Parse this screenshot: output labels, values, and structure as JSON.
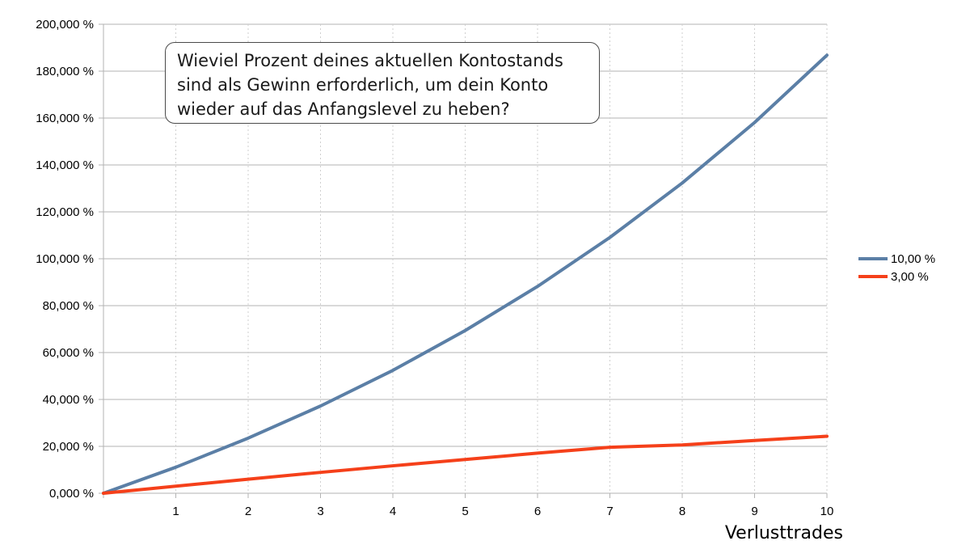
{
  "chart_data": {
    "type": "line",
    "x": [
      0,
      1,
      2,
      3,
      4,
      5,
      6,
      7,
      8,
      9,
      10
    ],
    "x_tick_labels": [
      "1",
      "2",
      "3",
      "4",
      "5",
      "6",
      "7",
      "8",
      "9",
      "10"
    ],
    "xlabel": "Verlusttrades",
    "ylabel": "",
    "ylim": [
      0,
      200000
    ],
    "y_tick_labels": [
      "0,000 %",
      "20,000 %",
      "40,000 %",
      "60,000 %",
      "80,000 %",
      "100,000 %",
      "120,000 %",
      "140,000 %",
      "160,000 %",
      "180,000 %",
      "200,000 %"
    ],
    "series": [
      {
        "name": "10,00 %",
        "color": "#5b7fa6",
        "values": [
          0,
          11100,
          23500,
          37200,
          52400,
          69400,
          88200,
          109100,
          132300,
          158100,
          186800
        ]
      },
      {
        "name": "3,00 %",
        "color": "#f5401a",
        "values": [
          0,
          3000,
          6000,
          8900,
          11700,
          14400,
          17100,
          19600,
          20600,
          22500,
          24300
        ]
      }
    ],
    "annotation": [
      "Wieviel Prozent deines aktuellen Kontostands",
      "sind als Gewinn erforderlich, um dein Konto",
      "wieder auf das Anfangslevel zu heben?"
    ],
    "grid": true,
    "legend_position": "right"
  }
}
